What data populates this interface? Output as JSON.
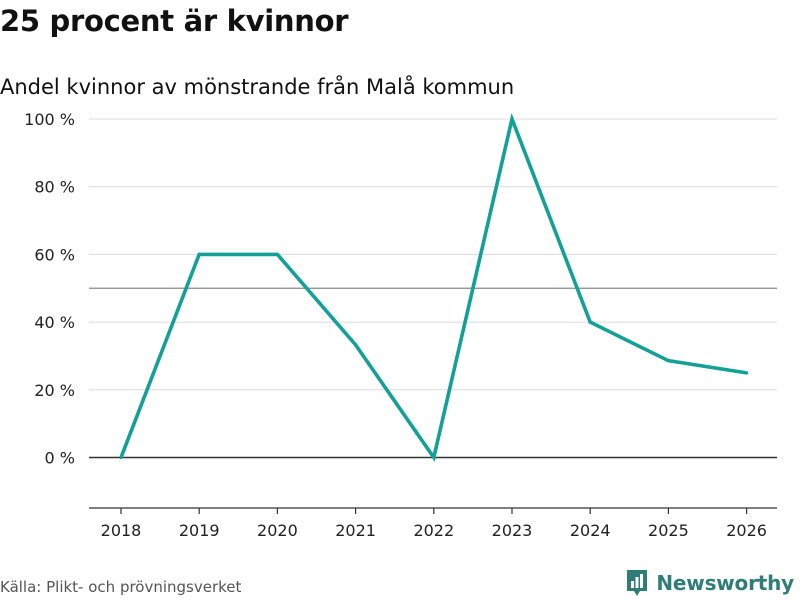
{
  "header": {
    "title": "25 procent är kvinnor",
    "subtitle": "Andel kvinnor av mönstrande från Malå kommun"
  },
  "footer": {
    "source": "Källa: Plikt- och prövningsverket",
    "brand": "Newsworthy",
    "brand_color": "#2e7d76"
  },
  "chart_data": {
    "type": "line",
    "title": "25 procent är kvinnor",
    "subtitle": "Andel kvinnor av mönstrande från Malå kommun",
    "xlabel": "",
    "ylabel": "",
    "x": [
      "2018",
      "2019",
      "2020",
      "2021",
      "2022",
      "2023",
      "2024",
      "2025",
      "2026"
    ],
    "series": [
      {
        "name": "Andel kvinnor",
        "color": "#13a197",
        "values": [
          0,
          60,
          60,
          33.3,
          0,
          100,
          40,
          28.6,
          25
        ]
      }
    ],
    "yticks": [
      0,
      20,
      40,
      60,
      80,
      100
    ],
    "ytick_labels": [
      "0 %",
      "20 %",
      "40 %",
      "60 %",
      "80 %",
      "100 %"
    ],
    "ylim": [
      -15,
      100
    ],
    "reference_line": 50,
    "grid": true
  }
}
